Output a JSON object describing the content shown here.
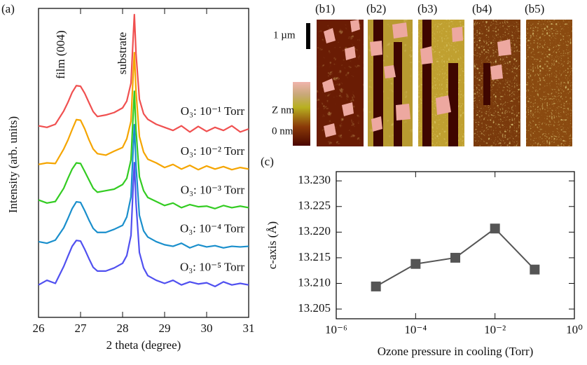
{
  "chart_data": [
    {
      "type": "line",
      "panel_label": "(a)",
      "xlabel": "2 theta (degree)",
      "ylabel": "Intensity (arb. units)",
      "annotations": [
        "film (004)",
        "substrate"
      ],
      "x": [
        26.0,
        26.2,
        26.4,
        26.6,
        26.7,
        26.8,
        26.9,
        27.0,
        27.1,
        27.2,
        27.3,
        27.4,
        27.6,
        27.8,
        28.0,
        28.1,
        28.2,
        28.25,
        28.28,
        28.32,
        28.4,
        28.5,
        28.6,
        28.8,
        29.0,
        29.2,
        29.4,
        29.6,
        29.8,
        30.0,
        30.2,
        30.4,
        30.6,
        30.8,
        31.0
      ],
      "series": [
        {
          "name": "O₃: 10⁻¹ Torr",
          "color": "#f05050",
          "values": [
            6.2,
            6.15,
            6.25,
            6.68,
            6.96,
            7.28,
            7.5,
            7.48,
            7.25,
            6.95,
            6.66,
            6.5,
            6.55,
            6.63,
            6.78,
            7.0,
            7.58,
            9.0,
            9.8,
            8.53,
            7.06,
            6.59,
            6.41,
            6.25,
            6.15,
            6.05,
            6.2,
            6.0,
            6.18,
            6.02,
            6.15,
            6.05,
            6.2,
            6.0,
            6.1
          ]
        },
        {
          "name": "O₃: 10⁻² Torr",
          "color": "#f5a500",
          "values": [
            4.95,
            5.0,
            4.98,
            5.45,
            5.74,
            6.08,
            6.4,
            6.38,
            6.1,
            5.75,
            5.45,
            5.3,
            5.25,
            5.38,
            5.5,
            5.78,
            6.35,
            7.8,
            8.57,
            7.3,
            5.85,
            5.35,
            5.12,
            5.0,
            4.85,
            4.95,
            4.8,
            4.92,
            4.78,
            4.9,
            4.8,
            4.88,
            4.78,
            4.85,
            4.8
          ]
        },
        {
          "name": "O₃: 10⁻³ Torr",
          "color": "#33cc22",
          "values": [
            3.8,
            3.7,
            3.75,
            4.18,
            4.5,
            4.8,
            5.0,
            4.98,
            4.72,
            4.45,
            4.18,
            4.05,
            4.1,
            4.15,
            4.3,
            4.5,
            5.1,
            6.5,
            7.32,
            6.05,
            4.55,
            4.1,
            3.88,
            3.75,
            3.62,
            3.7,
            3.55,
            3.65,
            3.58,
            3.6,
            3.52,
            3.62,
            3.55,
            3.6,
            3.55
          ]
        },
        {
          "name": "O₃: 10⁻⁴ Torr",
          "color": "#1a8fcc",
          "values": [
            2.45,
            2.4,
            2.5,
            2.9,
            3.2,
            3.52,
            3.74,
            3.72,
            3.45,
            3.15,
            2.88,
            2.75,
            2.75,
            2.85,
            2.98,
            3.25,
            3.9,
            5.4,
            6.24,
            4.9,
            3.3,
            2.8,
            2.6,
            2.45,
            2.35,
            2.3,
            2.4,
            2.25,
            2.35,
            2.28,
            2.32,
            2.25,
            2.3,
            2.28,
            2.3
          ]
        },
        {
          "name": "O₃: 10⁻⁵ Torr",
          "color": "#5050f0",
          "values": [
            1.05,
            1.2,
            1.1,
            1.65,
            1.98,
            2.3,
            2.49,
            2.47,
            2.2,
            1.9,
            1.62,
            1.5,
            1.5,
            1.6,
            1.75,
            2.0,
            2.65,
            4.2,
            5.01,
            3.7,
            2.1,
            1.6,
            1.35,
            1.2,
            1.1,
            1.2,
            1.05,
            1.15,
            1.08,
            1.12,
            1.0,
            1.15,
            1.05,
            1.1,
            1.05
          ]
        }
      ],
      "xlim": [
        26,
        31
      ],
      "xticks": [
        26,
        27,
        28,
        29,
        30,
        31
      ],
      "ylim": [
        0,
        10
      ]
    },
    {
      "type": "line",
      "panel_label": "(c)",
      "xlabel": "Ozone pressure in cooling (Torr)",
      "ylabel": "c-axis (Å)",
      "x_log": true,
      "markers": "square",
      "color": "#555555",
      "x": [
        1e-05,
        0.0001,
        0.001,
        0.01,
        0.1
      ],
      "values": [
        13.2094,
        13.2138,
        13.215,
        13.2207,
        13.2127
      ],
      "xlim": [
        1e-06,
        1
      ],
      "xticks": [
        {
          "value": 1e-06,
          "label": "10⁻⁶"
        },
        {
          "value": 0.0001,
          "label": "10⁻⁴"
        },
        {
          "value": 0.01,
          "label": "10⁻²"
        },
        {
          "value": 1,
          "label": "10⁰"
        }
      ],
      "ylim": [
        13.2031,
        13.2318
      ],
      "yticks": [
        13.205,
        {
          "value": 13.21,
          "label": "13.210"
        },
        13.215,
        {
          "value": 13.22,
          "label": "13.220"
        },
        13.225,
        {
          "value": 13.23,
          "label": "13.230"
        }
      ]
    }
  ],
  "afm": {
    "labels": [
      "(b1)",
      "(b2)",
      "(b3)",
      "(b4)",
      "(b5)"
    ],
    "scale_bar": "1 µm",
    "colorbar_top": "Z nm",
    "colorbar_bottom": "0 nm"
  }
}
